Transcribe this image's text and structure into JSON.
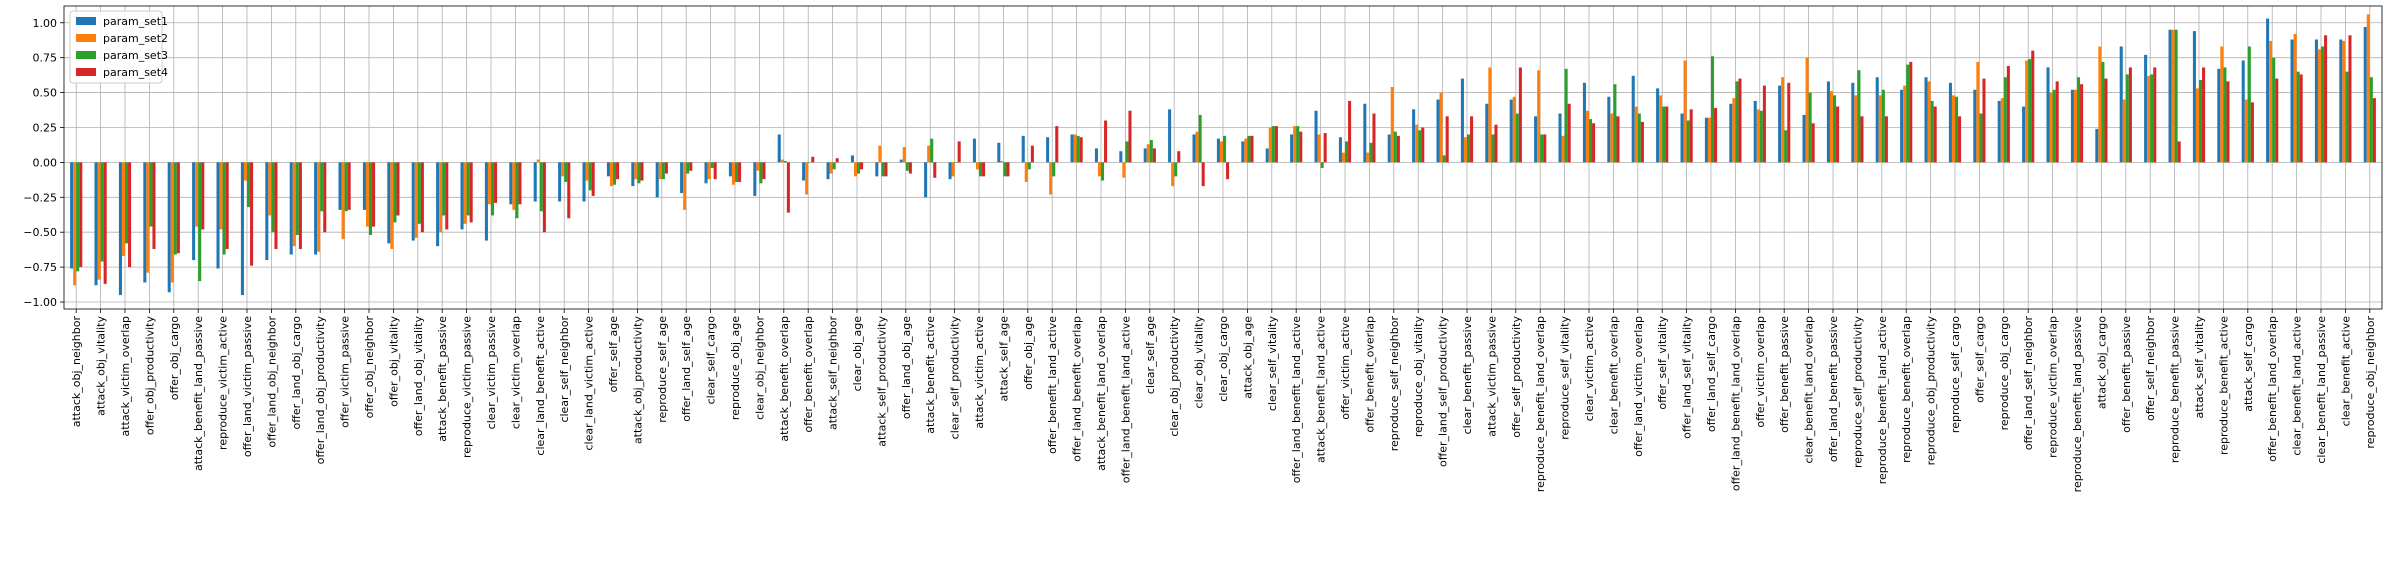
{
  "chart_data": {
    "type": "bar",
    "title": "",
    "xlabel": "",
    "ylabel": "",
    "ylim": [
      -1.05,
      1.12
    ],
    "yticks": [
      -1.0,
      -0.75,
      -0.5,
      -0.25,
      0.0,
      0.25,
      0.5,
      0.75,
      1.0
    ],
    "ytick_labels": [
      "−1.00",
      "−0.75",
      "−0.50",
      "−0.25",
      "0.00",
      "0.25",
      "0.50",
      "0.75",
      "1.00"
    ],
    "grid": true,
    "legend_position": "top-left",
    "categories": [
      "attack_obj_neighbor",
      "attack_obj_vitality",
      "attack_victim_overlap",
      "offer_obj_productivity",
      "offer_obj_cargo",
      "attack_benefit_land_passive",
      "reproduce_victim_active",
      "offer_land_victim_passive",
      "offer_land_obj_neighbor",
      "offer_land_obj_cargo",
      "offer_land_obj_productivity",
      "offer_victim_passive",
      "offer_obj_neighbor",
      "offer_obj_vitality",
      "offer_land_obj_vitality",
      "attack_benefit_passive",
      "reproduce_victim_passive",
      "clear_victim_passive",
      "clear_victim_overlap",
      "clear_land_benefit_active",
      "clear_self_neighbor",
      "clear_land_victim_active",
      "offer_self_age",
      "attack_obj_productivity",
      "reproduce_self_age",
      "offer_land_self_age",
      "clear_self_cargo",
      "reproduce_obj_age",
      "clear_obj_neighbor",
      "attack_benefit_overlap",
      "offer_benefit_overlap",
      "attack_self_neighbor",
      "clear_obj_age",
      "attack_self_productivity",
      "offer_land_obj_age",
      "attack_benefit_active",
      "clear_self_productivity",
      "attack_victim_active",
      "attack_self_age",
      "offer_obj_age",
      "offer_benefit_land_active",
      "offer_land_benefit_overlap",
      "attack_benefit_land_overlap",
      "offer_land_benefit_land_active",
      "clear_self_age",
      "clear_obj_productivity",
      "clear_obj_vitality",
      "clear_obj_cargo",
      "attack_obj_age",
      "clear_self_vitality",
      "offer_land_benefit_land_active",
      "attack_benefit_land_active",
      "offer_victim_active",
      "offer_benefit_overlap",
      "reproduce_self_neighbor",
      "reproduce_obj_vitality",
      "offer_land_self_productivity",
      "clear_benefit_passive",
      "attack_victim_passive",
      "offer_self_productivity",
      "reproduce_benefit_land_overlap",
      "reproduce_self_vitality",
      "clear_victim_active",
      "clear_benefit_overlap",
      "offer_land_victim_overlap",
      "offer_self_vitality",
      "offer_land_self_vitality",
      "offer_land_self_cargo",
      "offer_land_benefit_land_overlap",
      "offer_victim_overlap",
      "offer_benefit_passive",
      "clear_benefit_land_overlap",
      "offer_land_benefit_passive",
      "reproduce_self_productivity",
      "reproduce_benefit_land_active",
      "reproduce_benefit_overlap",
      "reproduce_obj_productivity",
      "reproduce_self_cargo",
      "offer_self_cargo",
      "reproduce_obj_cargo",
      "offer_land_self_neighbor",
      "reproduce_victim_overlap",
      "reproduce_benefit_land_passive",
      "attack_obj_cargo",
      "offer_benefit_passive",
      "offer_self_neighbor",
      "reproduce_benefit_passive",
      "attack_self_vitality",
      "reproduce_benefit_active",
      "attack_self_cargo",
      "offer_benefit_land_overlap",
      "clear_benefit_land_active",
      "clear_benefit_land_passive",
      "clear_benefit_active",
      "reproduce_obj_neighbor"
    ],
    "series": [
      {
        "name": "param_set1",
        "color": "#1f77b4",
        "values": [
          -0.76,
          -0.88,
          -0.95,
          -0.86,
          -0.93,
          -0.7,
          -0.76,
          -0.95,
          -0.7,
          -0.66,
          -0.66,
          -0.34,
          -0.34,
          -0.58,
          -0.56,
          -0.6,
          -0.48,
          -0.56,
          -0.3,
          -0.28,
          -0.28,
          -0.28,
          -0.1,
          -0.17,
          -0.25,
          -0.22,
          -0.15,
          -0.1,
          -0.24,
          0.2,
          -0.13,
          -0.12,
          0.05,
          -0.1,
          0.02,
          -0.25,
          -0.12,
          0.17,
          0.14,
          0.19,
          0.18,
          0.2,
          0.1,
          0.08,
          0.1,
          0.38,
          0.2,
          0.17,
          0.15,
          0.1,
          0.2,
          0.37,
          0.18,
          0.42,
          0.2,
          0.38,
          0.45,
          0.6,
          0.42,
          0.45,
          0.33,
          0.35,
          0.57,
          0.47,
          0.62,
          0.53,
          0.35,
          0.32,
          0.42,
          0.44,
          0.55,
          0.34,
          0.58,
          0.57,
          0.61,
          0.52,
          0.61,
          0.57,
          0.52,
          0.44,
          0.4,
          0.68,
          0.52,
          0.24,
          0.83,
          0.77,
          0.95,
          0.94,
          0.67,
          0.73,
          1.03,
          0.88,
          0.88,
          0.88,
          0.97
        ]
      },
      {
        "name": "param_set2",
        "color": "#ff7f0e",
        "values": [
          -0.88,
          -0.84,
          -0.67,
          -0.79,
          -0.86,
          -0.46,
          -0.48,
          -0.13,
          -0.38,
          -0.6,
          -0.64,
          -0.55,
          -0.46,
          -0.62,
          -0.54,
          -0.5,
          -0.44,
          -0.3,
          -0.34,
          0.02,
          -0.1,
          -0.13,
          -0.17,
          -0.12,
          -0.12,
          -0.34,
          -0.12,
          -0.16,
          -0.06,
          0.02,
          -0.23,
          -0.08,
          -0.1,
          0.12,
          0.11,
          0.12,
          -0.1,
          -0.05,
          0.01,
          -0.14,
          -0.23,
          0.2,
          -0.1,
          -0.11,
          0.13,
          -0.17,
          0.22,
          0.15,
          0.17,
          0.25,
          0.26,
          0.2,
          0.07,
          0.07,
          0.54,
          0.27,
          0.5,
          0.18,
          0.68,
          0.47,
          0.66,
          0.19,
          0.37,
          0.35,
          0.4,
          0.48,
          0.73,
          0.32,
          0.46,
          0.38,
          0.61,
          0.75,
          0.51,
          0.48,
          0.48,
          0.55,
          0.58,
          0.48,
          0.72,
          0.46,
          0.73,
          0.5,
          0.52,
          0.83,
          0.45,
          0.62,
          0.95,
          0.53,
          0.83,
          0.45,
          0.87,
          0.92,
          0.81,
          0.87,
          1.06
        ]
      },
      {
        "name": "param_set3",
        "color": "#2ca02c",
        "values": [
          -0.78,
          -0.71,
          -0.58,
          -0.46,
          -0.66,
          -0.85,
          -0.66,
          -0.32,
          -0.5,
          -0.52,
          -0.35,
          -0.35,
          -0.52,
          -0.43,
          -0.44,
          -0.38,
          -0.38,
          -0.38,
          -0.4,
          -0.35,
          -0.14,
          -0.2,
          -0.16,
          -0.15,
          -0.12,
          -0.08,
          -0.04,
          -0.14,
          -0.15,
          0.01,
          0.0,
          -0.05,
          -0.08,
          -0.1,
          -0.06,
          0.17,
          0.0,
          -0.1,
          -0.1,
          -0.05,
          -0.1,
          0.19,
          -0.13,
          0.15,
          0.16,
          -0.1,
          0.34,
          0.19,
          0.19,
          0.26,
          0.26,
          -0.04,
          0.15,
          0.14,
          0.22,
          0.23,
          0.05,
          0.2,
          0.2,
          0.35,
          0.2,
          0.67,
          0.31,
          0.56,
          0.35,
          0.4,
          0.3,
          0.76,
          0.58,
          0.37,
          0.23,
          0.5,
          0.48,
          0.66,
          0.52,
          0.7,
          0.44,
          0.47,
          0.35,
          0.61,
          0.74,
          0.52,
          0.61,
          0.72,
          0.63,
          0.63,
          0.95,
          0.59,
          0.68,
          0.83,
          0.75,
          0.65,
          0.83,
          0.65,
          0.61
        ]
      },
      {
        "name": "param_set4",
        "color": "#d62728",
        "values": [
          -0.75,
          -0.87,
          -0.75,
          -0.62,
          -0.65,
          -0.48,
          -0.62,
          -0.74,
          -0.62,
          -0.62,
          -0.5,
          -0.34,
          -0.46,
          -0.38,
          -0.5,
          -0.48,
          -0.43,
          -0.29,
          -0.3,
          -0.5,
          -0.4,
          -0.24,
          -0.12,
          -0.13,
          -0.08,
          -0.06,
          -0.12,
          -0.14,
          -0.12,
          -0.36,
          0.04,
          0.03,
          -0.05,
          -0.1,
          -0.08,
          -0.11,
          0.15,
          -0.1,
          -0.1,
          0.12,
          0.26,
          0.18,
          0.3,
          0.37,
          0.1,
          0.08,
          -0.17,
          -0.12,
          0.19,
          0.26,
          0.22,
          0.21,
          0.44,
          0.35,
          0.19,
          0.25,
          0.33,
          0.33,
          0.27,
          0.68,
          0.2,
          0.42,
          0.28,
          0.33,
          0.29,
          0.4,
          0.38,
          0.39,
          0.6,
          0.55,
          0.57,
          0.28,
          0.4,
          0.33,
          0.33,
          0.72,
          0.4,
          0.33,
          0.6,
          0.69,
          0.8,
          0.58,
          0.56,
          0.6,
          0.68,
          0.68,
          0.15,
          0.68,
          0.58,
          0.43,
          0.6,
          0.63,
          0.91,
          0.91,
          0.46
        ]
      }
    ]
  }
}
